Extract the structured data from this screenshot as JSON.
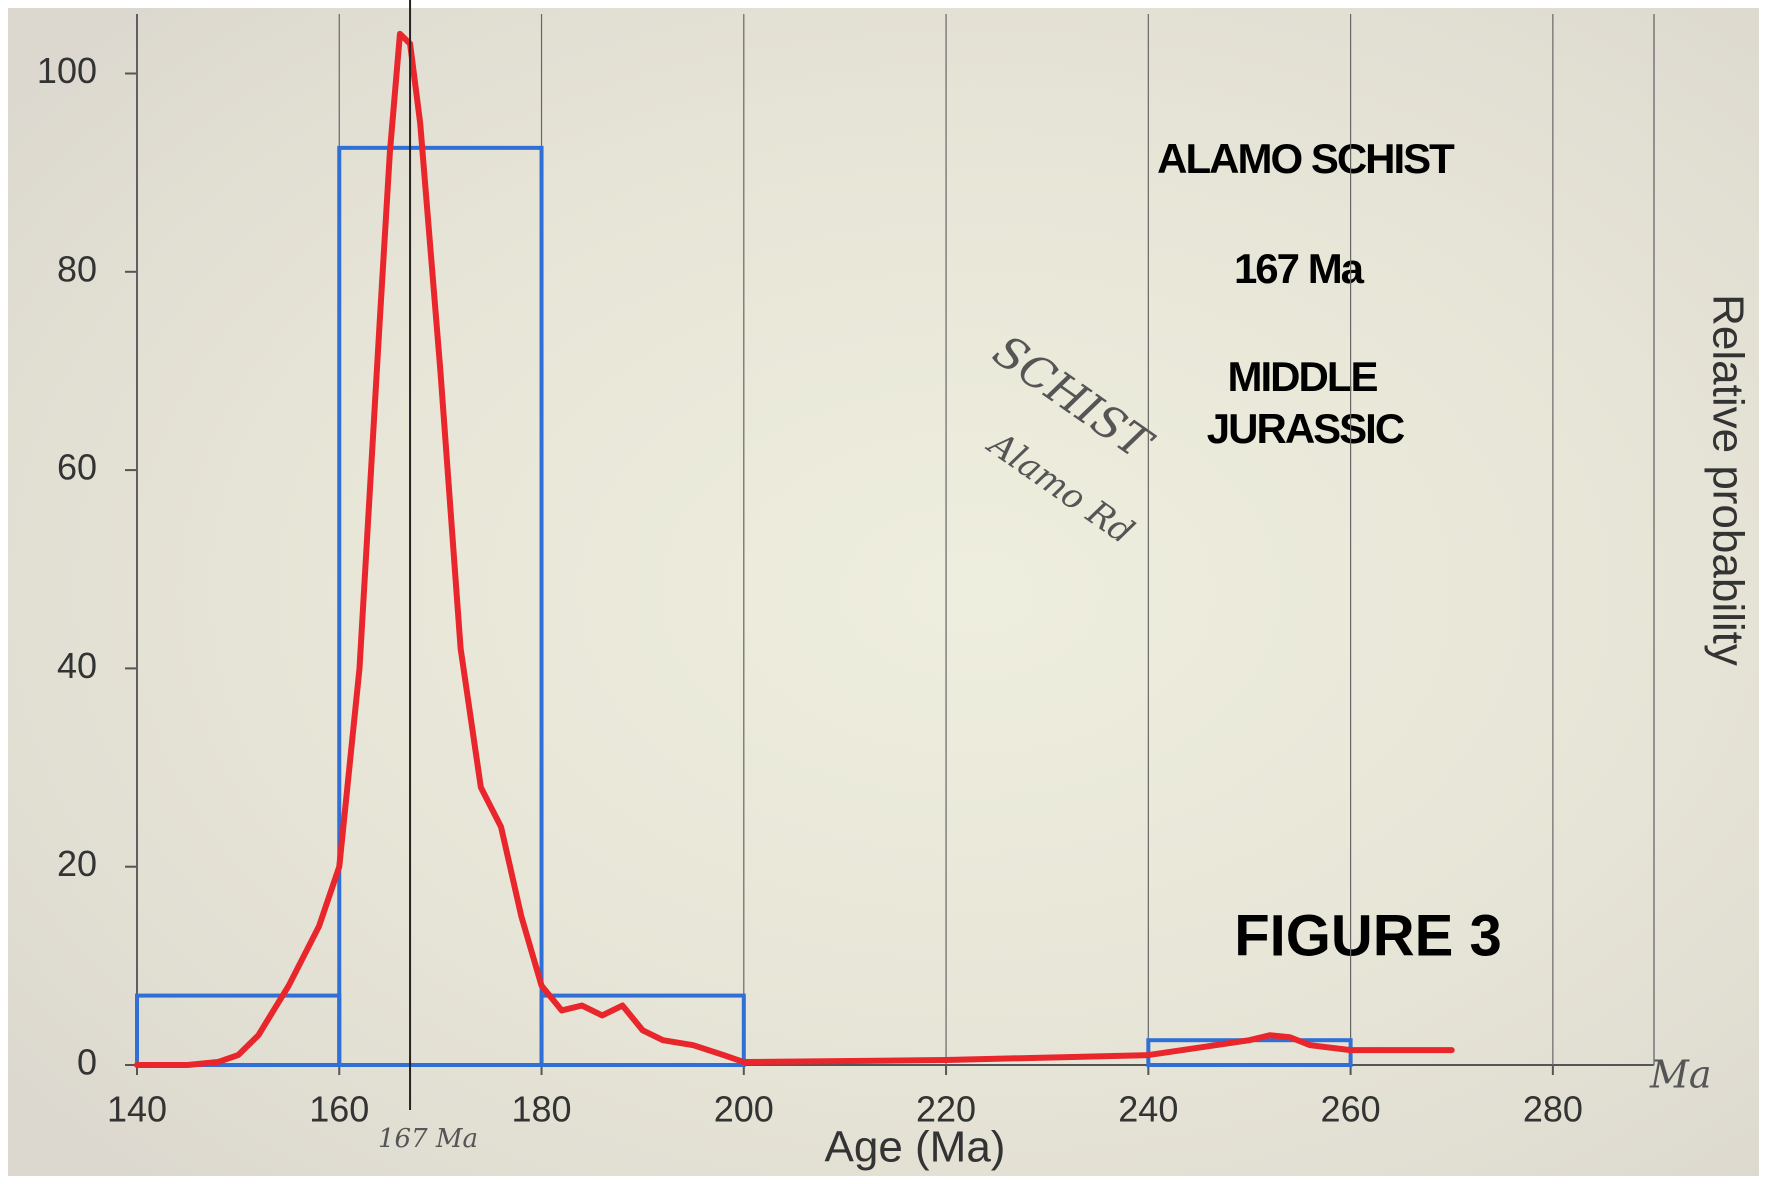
{
  "chart_data": {
    "type": "histogram",
    "bins": [
      140,
      160,
      180,
      200,
      220,
      240,
      260
    ],
    "counts": [
      7,
      92.5,
      7,
      0,
      0,
      2.5
    ],
    "color": "#2f6fd6",
    "curve": {
      "color": "#e8262b",
      "x": [
        140,
        145,
        148,
        150,
        152,
        155,
        158,
        160,
        162,
        164,
        165,
        166,
        167,
        168,
        170,
        172,
        174,
        176,
        178,
        180,
        182,
        184,
        186,
        188,
        190,
        192,
        195,
        198,
        200,
        220,
        240,
        250,
        252,
        254,
        256,
        260,
        270
      ],
      "y": [
        0,
        0,
        0.3,
        1,
        3,
        8,
        14,
        20,
        40,
        75,
        92,
        104,
        103,
        95,
        70,
        42,
        28,
        24,
        15,
        8,
        5.5,
        6,
        5,
        6,
        3.5,
        2.5,
        2,
        1,
        0.3,
        0.5,
        1,
        2.5,
        3,
        2.8,
        2,
        1.5,
        1.5
      ]
    },
    "marker_x": 167,
    "xlim": [
      140,
      290
    ],
    "ylim": [
      0,
      106
    ],
    "xticks": [
      140,
      160,
      180,
      200,
      220,
      240,
      260,
      280
    ],
    "yticks": [
      0,
      20,
      40,
      60,
      80,
      100
    ],
    "grid": true,
    "xlabel": "Age (Ma)",
    "y2label": "Relative probability",
    "annotations": [
      "ALAMO SCHIST",
      "167 Ma",
      "MIDDLE",
      "JURASSIC",
      "FIGURE 3"
    ],
    "handwritten": [
      "167 Ma",
      "Ma",
      "SCHIST",
      "Alamo Rd"
    ]
  }
}
